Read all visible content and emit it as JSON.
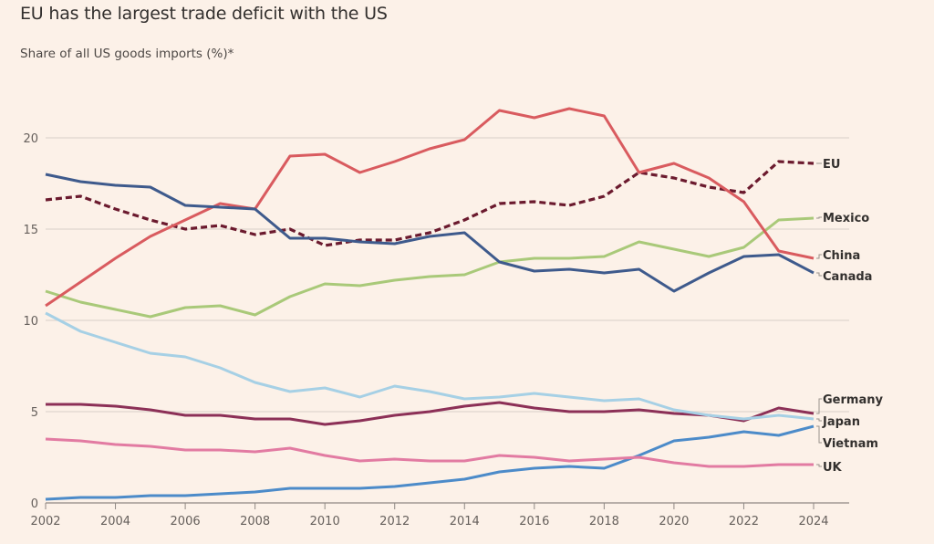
{
  "chart_data": {
    "type": "line",
    "title": "EU has the largest trade deficit with the US",
    "subtitle": "Share of all US goods imports (%)*",
    "xlabel": "",
    "ylabel": "",
    "ylim": [
      0,
      22
    ],
    "xlim": [
      2002,
      2024
    ],
    "grid": true,
    "legend": "direct labels at right end of lines",
    "x": [
      2002,
      2003,
      2004,
      2005,
      2006,
      2007,
      2008,
      2009,
      2010,
      2011,
      2012,
      2013,
      2014,
      2015,
      2016,
      2017,
      2018,
      2019,
      2020,
      2021,
      2022,
      2023,
      2024
    ],
    "x_ticks": [
      "2002",
      "2004",
      "2006",
      "2008",
      "2010",
      "2012",
      "2014",
      "2016",
      "2018",
      "2020",
      "2022",
      "2024"
    ],
    "y_ticks": [
      "0",
      "5",
      "10",
      "15",
      "20"
    ],
    "series": [
      {
        "name": "EU",
        "color": "#6b1a2e",
        "dashed": true,
        "values": [
          16.6,
          16.8,
          16.1,
          15.5,
          15.0,
          15.2,
          14.7,
          15.0,
          14.1,
          14.4,
          14.4,
          14.8,
          15.5,
          16.4,
          16.5,
          16.3,
          16.8,
          18.1,
          17.8,
          17.3,
          17.0,
          18.7,
          18.6
        ]
      },
      {
        "name": "Mexico",
        "color": "#a9c979",
        "dashed": false,
        "values": [
          11.6,
          11.0,
          10.6,
          10.2,
          10.7,
          10.8,
          10.3,
          11.3,
          12.0,
          11.9,
          12.2,
          12.4,
          12.5,
          13.2,
          13.4,
          13.4,
          13.5,
          14.3,
          13.9,
          13.5,
          14.0,
          15.5,
          15.6
        ]
      },
      {
        "name": "China",
        "color": "#d95b5f",
        "dashed": false,
        "values": [
          10.8,
          12.1,
          13.4,
          14.6,
          15.5,
          16.4,
          16.1,
          19.0,
          19.1,
          18.1,
          18.7,
          19.4,
          19.9,
          21.5,
          21.1,
          21.6,
          21.2,
          18.1,
          18.6,
          17.8,
          16.5,
          13.8,
          13.4
        ]
      },
      {
        "name": "Canada",
        "color": "#3e5a8c",
        "dashed": false,
        "values": [
          18.0,
          17.6,
          17.4,
          17.3,
          16.3,
          16.2,
          16.1,
          14.5,
          14.5,
          14.3,
          14.2,
          14.6,
          14.8,
          13.2,
          12.7,
          12.8,
          12.6,
          12.8,
          11.6,
          12.6,
          13.5,
          13.6,
          12.6
        ]
      },
      {
        "name": "Germany",
        "color": "#8c3057",
        "dashed": false,
        "values": [
          5.4,
          5.4,
          5.3,
          5.1,
          4.8,
          4.8,
          4.6,
          4.6,
          4.3,
          4.5,
          4.8,
          5.0,
          5.3,
          5.5,
          5.2,
          5.0,
          5.0,
          5.1,
          4.9,
          4.8,
          4.5,
          5.2,
          4.9
        ]
      },
      {
        "name": "Japan",
        "color": "#a6d0e5",
        "dashed": false,
        "values": [
          10.4,
          9.4,
          8.8,
          8.2,
          8.0,
          7.4,
          6.6,
          6.1,
          6.3,
          5.8,
          6.4,
          6.1,
          5.7,
          5.8,
          6.0,
          5.8,
          5.6,
          5.7,
          5.1,
          4.8,
          4.6,
          4.8,
          4.6
        ]
      },
      {
        "name": "Vietnam",
        "color": "#4c8bc9",
        "dashed": false,
        "values": [
          0.2,
          0.3,
          0.3,
          0.4,
          0.4,
          0.5,
          0.6,
          0.8,
          0.8,
          0.8,
          0.9,
          1.1,
          1.3,
          1.7,
          1.9,
          2.0,
          1.9,
          2.6,
          3.4,
          3.6,
          3.9,
          3.7,
          4.2
        ]
      },
      {
        "name": "UK",
        "color": "#e27ba2",
        "dashed": false,
        "values": [
          3.5,
          3.4,
          3.2,
          3.1,
          2.9,
          2.9,
          2.8,
          3.0,
          2.6,
          2.3,
          2.4,
          2.3,
          2.3,
          2.6,
          2.5,
          2.3,
          2.4,
          2.5,
          2.2,
          2.0,
          2.0,
          2.1,
          2.1
        ]
      }
    ]
  }
}
